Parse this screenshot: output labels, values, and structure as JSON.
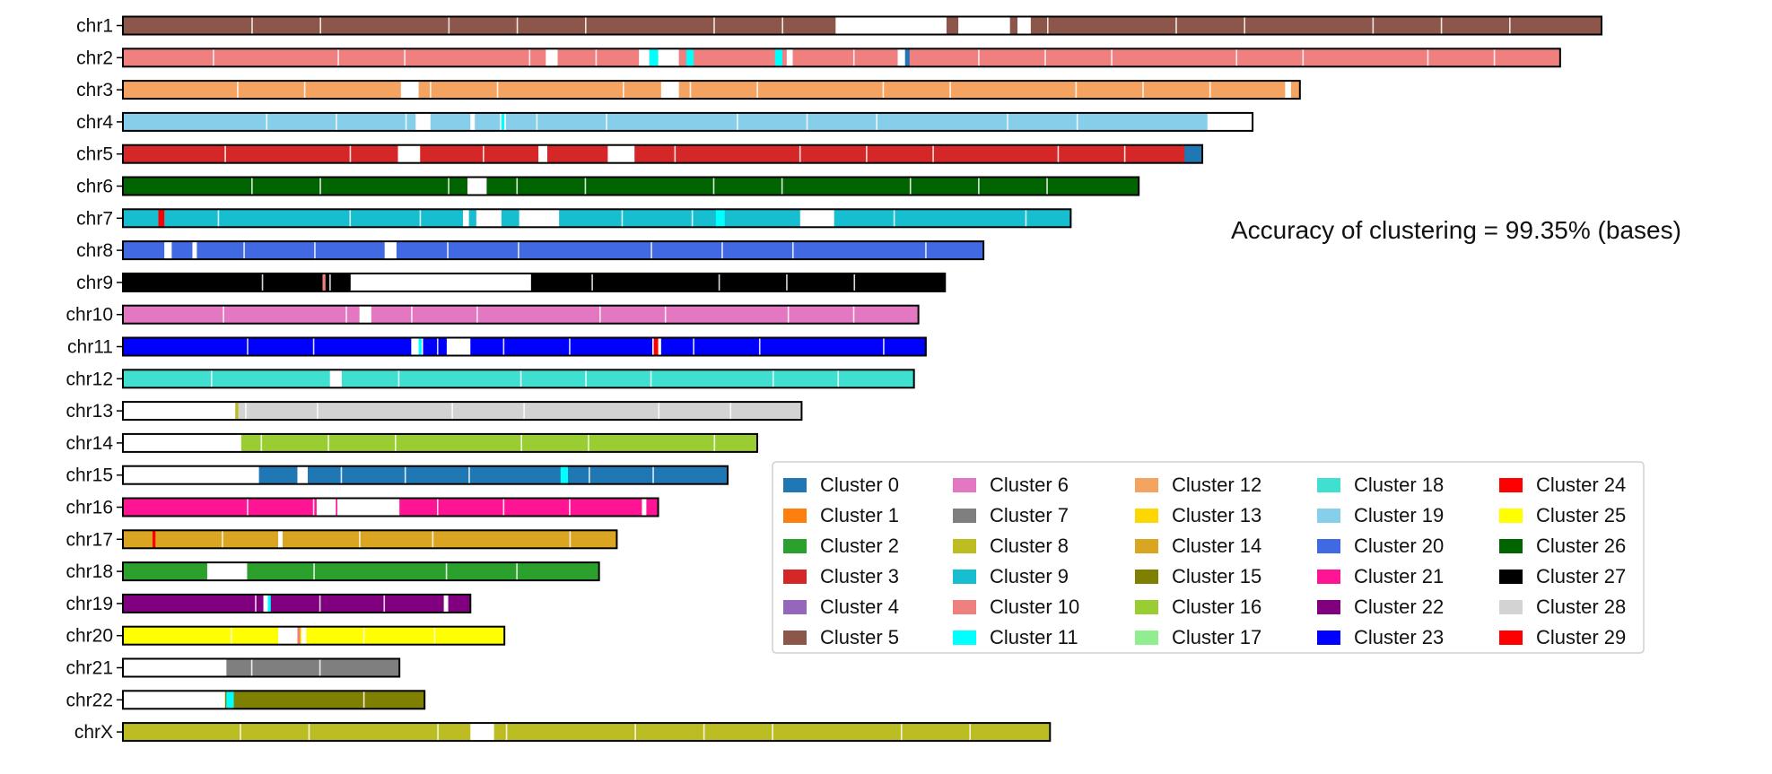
{
  "chart_data": {
    "type": "karyotype-segment-bar",
    "annotation": "Accuracy of clustering = 99.35% (bases)",
    "legend_placement": "lower-right",
    "clusters": [
      {
        "name": "Cluster 0",
        "color": "#1f77b4"
      },
      {
        "name": "Cluster 1",
        "color": "#ff7f0e"
      },
      {
        "name": "Cluster 2",
        "color": "#2ca02c"
      },
      {
        "name": "Cluster 3",
        "color": "#d62728"
      },
      {
        "name": "Cluster 4",
        "color": "#9467bd"
      },
      {
        "name": "Cluster 5",
        "color": "#8c564b"
      },
      {
        "name": "Cluster 6",
        "color": "#e377c2"
      },
      {
        "name": "Cluster 7",
        "color": "#7f7f7f"
      },
      {
        "name": "Cluster 8",
        "color": "#bcbd22"
      },
      {
        "name": "Cluster 9",
        "color": "#17becf"
      },
      {
        "name": "Cluster 10",
        "color": "#f08080"
      },
      {
        "name": "Cluster 11",
        "color": "#00ffff"
      },
      {
        "name": "Cluster 12",
        "color": "#f4a460"
      },
      {
        "name": "Cluster 13",
        "color": "#ffd700"
      },
      {
        "name": "Cluster 14",
        "color": "#daa520"
      },
      {
        "name": "Cluster 15",
        "color": "#808000"
      },
      {
        "name": "Cluster 16",
        "color": "#9acd32"
      },
      {
        "name": "Cluster 17",
        "color": "#90ee90"
      },
      {
        "name": "Cluster 18",
        "color": "#40e0d0"
      },
      {
        "name": "Cluster 19",
        "color": "#87ceeb"
      },
      {
        "name": "Cluster 20",
        "color": "#4169e1"
      },
      {
        "name": "Cluster 21",
        "color": "#ff1493"
      },
      {
        "name": "Cluster 22",
        "color": "#800080"
      },
      {
        "name": "Cluster 23",
        "color": "#0000ff"
      },
      {
        "name": "Cluster 24",
        "color": "#ff0000"
      },
      {
        "name": "Cluster 25",
        "color": "#ffff00"
      },
      {
        "name": "Cluster 26",
        "color": "#006400"
      },
      {
        "name": "Cluster 27",
        "color": "#000000"
      },
      {
        "name": "Cluster 28",
        "color": "#d3d3d3"
      },
      {
        "name": "Cluster 29",
        "color": "#ff0000"
      }
    ],
    "chromosomes": [
      {
        "label": "chr1",
        "length": 1.0,
        "main": 5,
        "segments": [
          [
            0.482,
            0.557,
            null
          ],
          [
            0.565,
            0.6,
            null
          ],
          [
            0.6,
            0.605,
            5
          ],
          [
            0.605,
            0.614,
            null
          ]
        ]
      },
      {
        "label": "chr2",
        "length": 0.972,
        "main": 10,
        "segments": [
          [
            0.286,
            0.294,
            null
          ],
          [
            0.349,
            0.356,
            null
          ],
          [
            0.356,
            0.362,
            11
          ],
          [
            0.362,
            0.376,
            null
          ],
          [
            0.381,
            0.386,
            11
          ],
          [
            0.441,
            0.446,
            11
          ],
          [
            0.449,
            0.453,
            null
          ],
          [
            0.524,
            0.529,
            null
          ],
          [
            0.529,
            0.532,
            0
          ]
        ]
      },
      {
        "label": "chr3",
        "length": 0.796,
        "main": 12,
        "segments": [
          [
            0.188,
            0.2,
            null
          ],
          [
            0.364,
            0.376,
            null
          ],
          [
            0.786,
            0.79,
            null
          ]
        ]
      },
      {
        "label": "chr4",
        "length": 0.764,
        "main": 19,
        "segments": [
          [
            0.198,
            0.208,
            null
          ],
          [
            0.235,
            0.238,
            null
          ],
          [
            0.255,
            0.259,
            null
          ],
          [
            0.256,
            0.258,
            11
          ],
          [
            0.734,
            0.764,
            null
          ]
        ]
      },
      {
        "label": "chr5",
        "length": 0.73,
        "main": 3,
        "segments": [
          [
            0.186,
            0.201,
            null
          ],
          [
            0.281,
            0.287,
            null
          ],
          [
            0.328,
            0.346,
            null
          ],
          [
            0.718,
            0.73,
            0
          ]
        ]
      },
      {
        "label": "chr6",
        "length": 0.687,
        "main": 26,
        "segments": [
          [
            0.233,
            0.246,
            null
          ]
        ]
      },
      {
        "label": "chr7",
        "length": 0.641,
        "main": 9,
        "segments": [
          [
            0.024,
            0.028,
            24
          ],
          [
            0.23,
            0.234,
            null
          ],
          [
            0.239,
            0.256,
            null
          ],
          [
            0.268,
            0.295,
            null
          ],
          [
            0.401,
            0.407,
            11
          ],
          [
            0.458,
            0.481,
            null
          ]
        ]
      },
      {
        "label": "chr8",
        "length": 0.582,
        "main": 20,
        "segments": [
          [
            0.028,
            0.033,
            null
          ],
          [
            0.047,
            0.05,
            null
          ],
          [
            0.177,
            0.185,
            null
          ]
        ]
      },
      {
        "label": "chr9",
        "length": 0.556,
        "main": 27,
        "segments": [
          [
            0.135,
            0.137,
            10
          ],
          [
            0.154,
            0.276,
            null
          ]
        ]
      },
      {
        "label": "chr10",
        "length": 0.538,
        "main": 6,
        "segments": [
          [
            0.16,
            0.168,
            null
          ]
        ]
      },
      {
        "label": "chr11",
        "length": 0.543,
        "main": 23,
        "segments": [
          [
            0.195,
            0.203,
            null
          ],
          [
            0.2,
            0.202,
            11
          ],
          [
            0.219,
            0.235,
            null
          ],
          [
            0.358,
            0.364,
            null
          ],
          [
            0.359,
            0.362,
            24
          ]
        ]
      },
      {
        "label": "chr12",
        "length": 0.535,
        "main": 18,
        "segments": [
          [
            0.14,
            0.148,
            null
          ]
        ]
      },
      {
        "label": "chr13",
        "length": 0.459,
        "main": 28,
        "segments": [
          [
            0.0,
            0.076,
            null
          ],
          [
            0.076,
            0.078,
            8
          ]
        ]
      },
      {
        "label": "chr14",
        "length": 0.429,
        "main": 16,
        "segments": [
          [
            0.0,
            0.08,
            null
          ]
        ]
      },
      {
        "label": "chr15",
        "length": 0.409,
        "main": 0,
        "segments": [
          [
            0.0,
            0.092,
            null
          ],
          [
            0.118,
            0.125,
            null
          ],
          [
            0.296,
            0.301,
            11
          ]
        ]
      },
      {
        "label": "chr16",
        "length": 0.362,
        "main": 21,
        "segments": [
          [
            0.131,
            0.144,
            null
          ],
          [
            0.145,
            0.187,
            null
          ],
          [
            0.351,
            0.354,
            null
          ]
        ]
      },
      {
        "label": "chr17",
        "length": 0.334,
        "main": 14,
        "segments": [
          [
            0.02,
            0.022,
            29
          ],
          [
            0.105,
            0.108,
            null
          ]
        ]
      },
      {
        "label": "chr18",
        "length": 0.322,
        "main": 2,
        "segments": [
          [
            0.057,
            0.084,
            null
          ]
        ]
      },
      {
        "label": "chr19",
        "length": 0.235,
        "main": 22,
        "segments": [
          [
            0.095,
            0.099,
            null
          ],
          [
            0.098,
            0.1,
            11
          ],
          [
            0.217,
            0.22,
            null
          ]
        ]
      },
      {
        "label": "chr20",
        "length": 0.258,
        "main": 25,
        "segments": [
          [
            0.105,
            0.118,
            null
          ],
          [
            0.118,
            0.12,
            10
          ],
          [
            0.121,
            0.124,
            null
          ]
        ]
      },
      {
        "label": "chr21",
        "length": 0.187,
        "main": 7,
        "segments": [
          [
            0.0,
            0.07,
            null
          ]
        ]
      },
      {
        "label": "chr22",
        "length": 0.204,
        "main": 15,
        "segments": [
          [
            0.0,
            0.069,
            null
          ],
          [
            0.07,
            0.075,
            11
          ]
        ]
      },
      {
        "label": "chrX",
        "length": 0.627,
        "main": 8,
        "segments": [
          [
            0.235,
            0.251,
            null
          ]
        ]
      }
    ]
  }
}
